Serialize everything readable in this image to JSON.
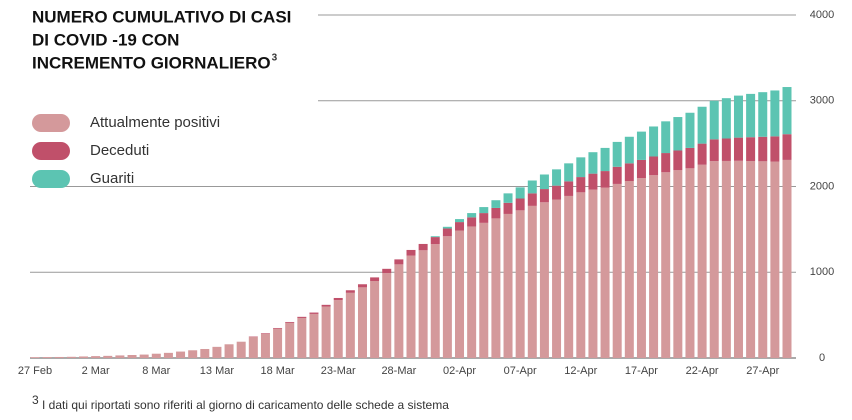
{
  "chart_data": {
    "type": "stacked_bar",
    "title_lines": [
      "NUMERO CUMULATIVO DI CASI",
      "DI COVID -19  CON",
      "INCREMENTO GIORNALIERO"
    ],
    "title_note": "3",
    "footnote_mark": "3",
    "footnote": "I dati qui riportati sono riferiti al giorno di caricamento delle schede a sistema",
    "categories": [
      "27 Feb",
      null,
      null,
      null,
      null,
      "2 Mar",
      null,
      null,
      null,
      null,
      "8 Mar",
      null,
      null,
      null,
      null,
      "13 Mar",
      null,
      null,
      null,
      null,
      "18 Mar",
      null,
      null,
      null,
      null,
      "23-Mar",
      null,
      null,
      null,
      null,
      "28-Mar",
      null,
      null,
      null,
      null,
      "02-Apr",
      null,
      null,
      null,
      null,
      "07-Apr",
      null,
      null,
      null,
      null,
      "12-Apr",
      null,
      null,
      null,
      null,
      "17-Apr",
      null,
      null,
      null,
      null,
      "22-Apr",
      null,
      null,
      null,
      null,
      "27-Apr",
      null,
      null
    ],
    "series": [
      {
        "name": "Attualmente positivi",
        "color": "#d4999b",
        "values": [
          10,
          11,
          12,
          14,
          18,
          22,
          25,
          30,
          35,
          40,
          50,
          60,
          75,
          90,
          105,
          130,
          160,
          190,
          245,
          284,
          342,
          410,
          467,
          514,
          600,
          675,
          760,
          824,
          898,
          990,
          1092,
          1194,
          1256,
          1328,
          1420,
          1487,
          1534,
          1576,
          1628,
          1680,
          1722,
          1774,
          1816,
          1848,
          1890,
          1932,
          1964,
          1986,
          2030,
          2064,
          2098,
          2132,
          2166,
          2190,
          2212,
          2254,
          2296,
          2298,
          2300,
          2297,
          2294,
          2291,
          2310
        ]
      },
      {
        "name": "Deceduti",
        "color": "#c0506a",
        "values": [
          0,
          0,
          0,
          0,
          0,
          0,
          0,
          0,
          0,
          0,
          0,
          0,
          0,
          0,
          0,
          0,
          0,
          0,
          5,
          6,
          8,
          10,
          13,
          16,
          20,
          25,
          30,
          36,
          42,
          50,
          58,
          66,
          74,
          82,
          90,
          98,
          106,
          114,
          122,
          130,
          138,
          146,
          154,
          162,
          170,
          178,
          186,
          194,
          200,
          206,
          212,
          218,
          224,
          230,
          238,
          246,
          254,
          262,
          270,
          278,
          286,
          294,
          300
        ]
      },
      {
        "name": "Guariti",
        "color": "#5cc4b2",
        "values": [
          0,
          0,
          0,
          0,
          0,
          0,
          0,
          0,
          0,
          0,
          0,
          0,
          0,
          0,
          0,
          0,
          0,
          0,
          0,
          0,
          0,
          0,
          0,
          0,
          0,
          0,
          0,
          0,
          0,
          0,
          0,
          0,
          0,
          10,
          20,
          35,
          50,
          70,
          90,
          110,
          130,
          150,
          170,
          190,
          210,
          230,
          250,
          270,
          290,
          310,
          330,
          350,
          370,
          390,
          410,
          430,
          450,
          470,
          490,
          505,
          520,
          535,
          550
        ]
      }
    ],
    "ylim": [
      0,
      4000
    ],
    "yticks": [
      0,
      1000,
      2000,
      3000,
      4000
    ],
    "grid": true
  }
}
